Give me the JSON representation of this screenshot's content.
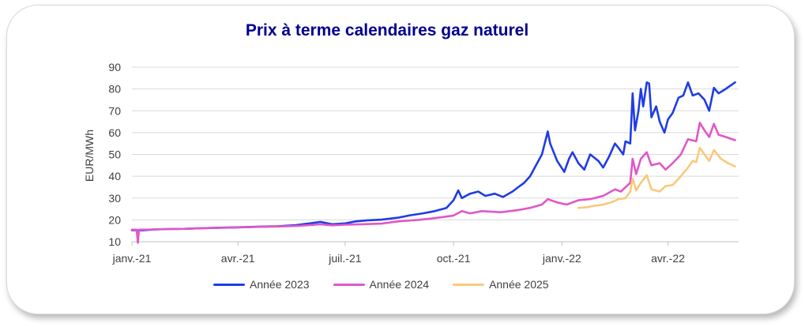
{
  "colors": {
    "series_2023": "#1f3ce6",
    "series_2024": "#e057c8",
    "series_2025": "#f9c97a",
    "title": "#000090",
    "axis_text": "#404040"
  },
  "chart_data": {
    "type": "line",
    "title": "Prix à terme calendaires gaz naturel",
    "ylabel": "EUR/MWh",
    "xlabel": "",
    "ylim": [
      10,
      90
    ],
    "yticks": [
      10,
      20,
      30,
      40,
      50,
      60,
      70,
      80,
      90
    ],
    "xlim": [
      "2021-01-01",
      "2022-05-31"
    ],
    "xticks": [
      {
        "date": "2021-01-01",
        "label": "janv.-21"
      },
      {
        "date": "2021-04-01",
        "label": "avr.-21"
      },
      {
        "date": "2021-07-01",
        "label": "juil.-21"
      },
      {
        "date": "2021-10-01",
        "label": "oct.-21"
      },
      {
        "date": "2022-01-01",
        "label": "janv.-22"
      },
      {
        "date": "2022-04-01",
        "label": "avr.-22"
      }
    ],
    "grid": "horizontal",
    "legend": "bottom",
    "series": [
      {
        "name": "Année 2023",
        "color": "#1f3ce6",
        "points": [
          [
            "2021-01-01",
            15.3
          ],
          [
            "2021-01-10",
            15.2
          ],
          [
            "2021-01-20",
            15.6
          ],
          [
            "2021-02-01",
            15.8
          ],
          [
            "2021-02-15",
            15.9
          ],
          [
            "2021-03-01",
            16.2
          ],
          [
            "2021-03-15",
            16.4
          ],
          [
            "2021-04-01",
            16.6
          ],
          [
            "2021-04-20",
            16.9
          ],
          [
            "2021-05-05",
            17.1
          ],
          [
            "2021-05-20",
            17.6
          ],
          [
            "2021-06-01",
            18.4
          ],
          [
            "2021-06-10",
            19.1
          ],
          [
            "2021-06-20",
            18.0
          ],
          [
            "2021-07-01",
            18.4
          ],
          [
            "2021-07-10",
            19.3
          ],
          [
            "2021-07-20",
            19.8
          ],
          [
            "2021-08-01",
            20.1
          ],
          [
            "2021-08-15",
            21.0
          ],
          [
            "2021-08-25",
            22.1
          ],
          [
            "2021-09-05",
            23.0
          ],
          [
            "2021-09-15",
            24.0
          ],
          [
            "2021-09-25",
            25.5
          ],
          [
            "2021-10-01",
            29.0
          ],
          [
            "2021-10-05",
            33.5
          ],
          [
            "2021-10-08",
            30.0
          ],
          [
            "2021-10-15",
            32.0
          ],
          [
            "2021-10-22",
            33.0
          ],
          [
            "2021-10-28",
            31.0
          ],
          [
            "2021-11-05",
            32.0
          ],
          [
            "2021-11-12",
            30.5
          ],
          [
            "2021-11-20",
            33.0
          ],
          [
            "2021-11-25",
            35.0
          ],
          [
            "2021-11-30",
            37.0
          ],
          [
            "2021-12-05",
            40.0
          ],
          [
            "2021-12-10",
            45.0
          ],
          [
            "2021-12-15",
            50.0
          ],
          [
            "2021-12-20",
            60.5
          ],
          [
            "2021-12-22",
            55.0
          ],
          [
            "2021-12-28",
            47.0
          ],
          [
            "2022-01-03",
            42.0
          ],
          [
            "2022-01-07",
            48.0
          ],
          [
            "2022-01-10",
            51.0
          ],
          [
            "2022-01-15",
            46.0
          ],
          [
            "2022-01-20",
            43.0
          ],
          [
            "2022-01-25",
            50.0
          ],
          [
            "2022-02-01",
            47.0
          ],
          [
            "2022-02-05",
            44.0
          ],
          [
            "2022-02-10",
            49.0
          ],
          [
            "2022-02-15",
            55.0
          ],
          [
            "2022-02-18",
            53.0
          ],
          [
            "2022-02-22",
            50.0
          ],
          [
            "2022-02-24",
            56.0
          ],
          [
            "2022-02-28",
            55.0
          ],
          [
            "2022-03-02",
            78.0
          ],
          [
            "2022-03-04",
            61.0
          ],
          [
            "2022-03-07",
            70.0
          ],
          [
            "2022-03-09",
            80.0
          ],
          [
            "2022-03-11",
            72.0
          ],
          [
            "2022-03-14",
            83.0
          ],
          [
            "2022-03-16",
            82.5
          ],
          [
            "2022-03-18",
            67.0
          ],
          [
            "2022-03-22",
            72.0
          ],
          [
            "2022-03-25",
            65.0
          ],
          [
            "2022-03-29",
            60.0
          ],
          [
            "2022-04-01",
            66.0
          ],
          [
            "2022-04-05",
            69.0
          ],
          [
            "2022-04-10",
            76.0
          ],
          [
            "2022-04-14",
            77.0
          ],
          [
            "2022-04-18",
            83.0
          ],
          [
            "2022-04-22",
            77.0
          ],
          [
            "2022-04-27",
            78.0
          ],
          [
            "2022-05-02",
            75.0
          ],
          [
            "2022-05-06",
            70.0
          ],
          [
            "2022-05-10",
            80.5
          ],
          [
            "2022-05-14",
            78.0
          ],
          [
            "2022-05-20",
            80.0
          ],
          [
            "2022-05-28",
            83.0
          ]
        ]
      },
      {
        "name": "Année 2024",
        "color": "#e057c8",
        "points": [
          [
            "2021-01-01",
            15.5
          ],
          [
            "2021-01-05",
            15.5
          ],
          [
            "2021-01-06",
            9.5
          ],
          [
            "2021-01-07",
            15.5
          ],
          [
            "2021-01-20",
            15.6
          ],
          [
            "2021-02-01",
            15.8
          ],
          [
            "2021-02-15",
            15.9
          ],
          [
            "2021-03-01",
            16.2
          ],
          [
            "2021-03-15",
            16.3
          ],
          [
            "2021-04-01",
            16.5
          ],
          [
            "2021-04-20",
            16.8
          ],
          [
            "2021-05-05",
            17.0
          ],
          [
            "2021-05-20",
            17.2
          ],
          [
            "2021-06-01",
            17.6
          ],
          [
            "2021-06-10",
            18.0
          ],
          [
            "2021-06-20",
            17.5
          ],
          [
            "2021-07-01",
            17.8
          ],
          [
            "2021-07-15",
            18.0
          ],
          [
            "2021-08-01",
            18.3
          ],
          [
            "2021-08-15",
            19.3
          ],
          [
            "2021-09-01",
            20.0
          ],
          [
            "2021-09-15",
            20.8
          ],
          [
            "2021-10-01",
            22.0
          ],
          [
            "2021-10-08",
            24.0
          ],
          [
            "2021-10-15",
            23.0
          ],
          [
            "2021-10-25",
            24.0
          ],
          [
            "2021-11-10",
            23.5
          ],
          [
            "2021-11-25",
            24.5
          ],
          [
            "2021-12-05",
            25.5
          ],
          [
            "2021-12-15",
            27.0
          ],
          [
            "2021-12-20",
            29.5
          ],
          [
            "2021-12-28",
            28.0
          ],
          [
            "2022-01-05",
            27.0
          ],
          [
            "2022-01-15",
            29.0
          ],
          [
            "2022-01-25",
            29.5
          ],
          [
            "2022-02-05",
            31.0
          ],
          [
            "2022-02-15",
            34.0
          ],
          [
            "2022-02-20",
            33.0
          ],
          [
            "2022-02-28",
            37.0
          ],
          [
            "2022-03-02",
            48.0
          ],
          [
            "2022-03-05",
            41.0
          ],
          [
            "2022-03-09",
            48.0
          ],
          [
            "2022-03-14",
            51.0
          ],
          [
            "2022-03-18",
            45.0
          ],
          [
            "2022-03-25",
            46.0
          ],
          [
            "2022-03-30",
            43.0
          ],
          [
            "2022-04-05",
            46.0
          ],
          [
            "2022-04-12",
            50.0
          ],
          [
            "2022-04-18",
            57.0
          ],
          [
            "2022-04-25",
            56.0
          ],
          [
            "2022-04-28",
            64.5
          ],
          [
            "2022-05-02",
            61.0
          ],
          [
            "2022-05-06",
            58.0
          ],
          [
            "2022-05-10",
            64.0
          ],
          [
            "2022-05-14",
            59.0
          ],
          [
            "2022-05-20",
            58.0
          ],
          [
            "2022-05-28",
            56.5
          ]
        ]
      },
      {
        "name": "Année 2025",
        "color": "#f9c97a",
        "points": [
          [
            "2022-01-15",
            25.5
          ],
          [
            "2022-01-22",
            25.8
          ],
          [
            "2022-01-29",
            26.5
          ],
          [
            "2022-02-05",
            27.0
          ],
          [
            "2022-02-12",
            28.0
          ],
          [
            "2022-02-18",
            29.5
          ],
          [
            "2022-02-24",
            30.0
          ],
          [
            "2022-02-28",
            33.0
          ],
          [
            "2022-03-02",
            39.0
          ],
          [
            "2022-03-05",
            33.5
          ],
          [
            "2022-03-09",
            37.0
          ],
          [
            "2022-03-14",
            40.5
          ],
          [
            "2022-03-18",
            34.0
          ],
          [
            "2022-03-25",
            33.0
          ],
          [
            "2022-03-30",
            35.5
          ],
          [
            "2022-04-05",
            36.0
          ],
          [
            "2022-04-12",
            40.0
          ],
          [
            "2022-04-18",
            44.0
          ],
          [
            "2022-04-22",
            47.0
          ],
          [
            "2022-04-25",
            46.5
          ],
          [
            "2022-04-28",
            53.0
          ],
          [
            "2022-05-02",
            50.0
          ],
          [
            "2022-05-06",
            47.0
          ],
          [
            "2022-05-10",
            52.0
          ],
          [
            "2022-05-16",
            48.0
          ],
          [
            "2022-05-22",
            46.0
          ],
          [
            "2022-05-28",
            44.5
          ]
        ]
      }
    ]
  }
}
